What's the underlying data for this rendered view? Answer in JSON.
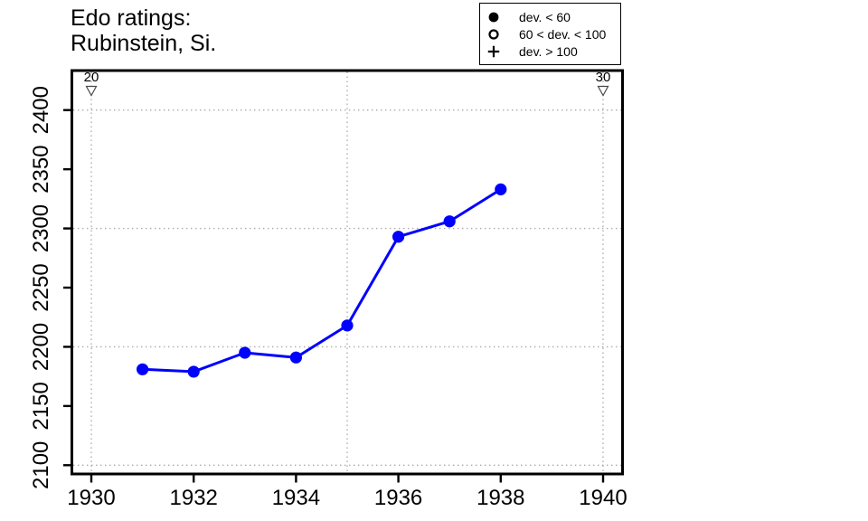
{
  "title": {
    "line1": "Edo ratings:",
    "line2": "Rubinstein, Si."
  },
  "legend": {
    "items": [
      {
        "icon": "filled-circle",
        "label": "dev. < 60"
      },
      {
        "icon": "open-circle",
        "label": "60 < dev. < 100"
      },
      {
        "icon": "plus",
        "label": "dev. > 100"
      }
    ]
  },
  "chart_data": {
    "type": "line",
    "title": "Edo ratings: Rubinstein, Si.",
    "xlabel": "",
    "ylabel": "",
    "series_name": "Edo rating (dev. < 60)",
    "marker": "filled-circle",
    "x": [
      1931,
      1932,
      1933,
      1934,
      1935,
      1936,
      1937,
      1938
    ],
    "values": [
      2181,
      2179,
      2195,
      2191,
      2218,
      2293,
      2306,
      2333
    ],
    "xlim": [
      1929.6,
      1940.4
    ],
    "ylim": [
      2093,
      2434
    ],
    "x_ticks": [
      1930,
      1932,
      1934,
      1936,
      1938,
      1940
    ],
    "y_ticks": [
      2100,
      2150,
      2200,
      2250,
      2300,
      2350,
      2400
    ],
    "grid_x": [
      1930,
      1935,
      1940
    ],
    "grid_y": [
      2100,
      2200,
      2300,
      2400
    ],
    "grid_style": "dotted",
    "legend_position": "top-right",
    "top_markers": [
      {
        "label": "20",
        "x": 1930
      },
      {
        "label": "30",
        "x": 1940
      }
    ],
    "colors": {
      "line": "#0000FF",
      "marker": "#0000FF",
      "grid": "#A8A8A8",
      "axis": "#000000",
      "text": "#000000"
    }
  }
}
